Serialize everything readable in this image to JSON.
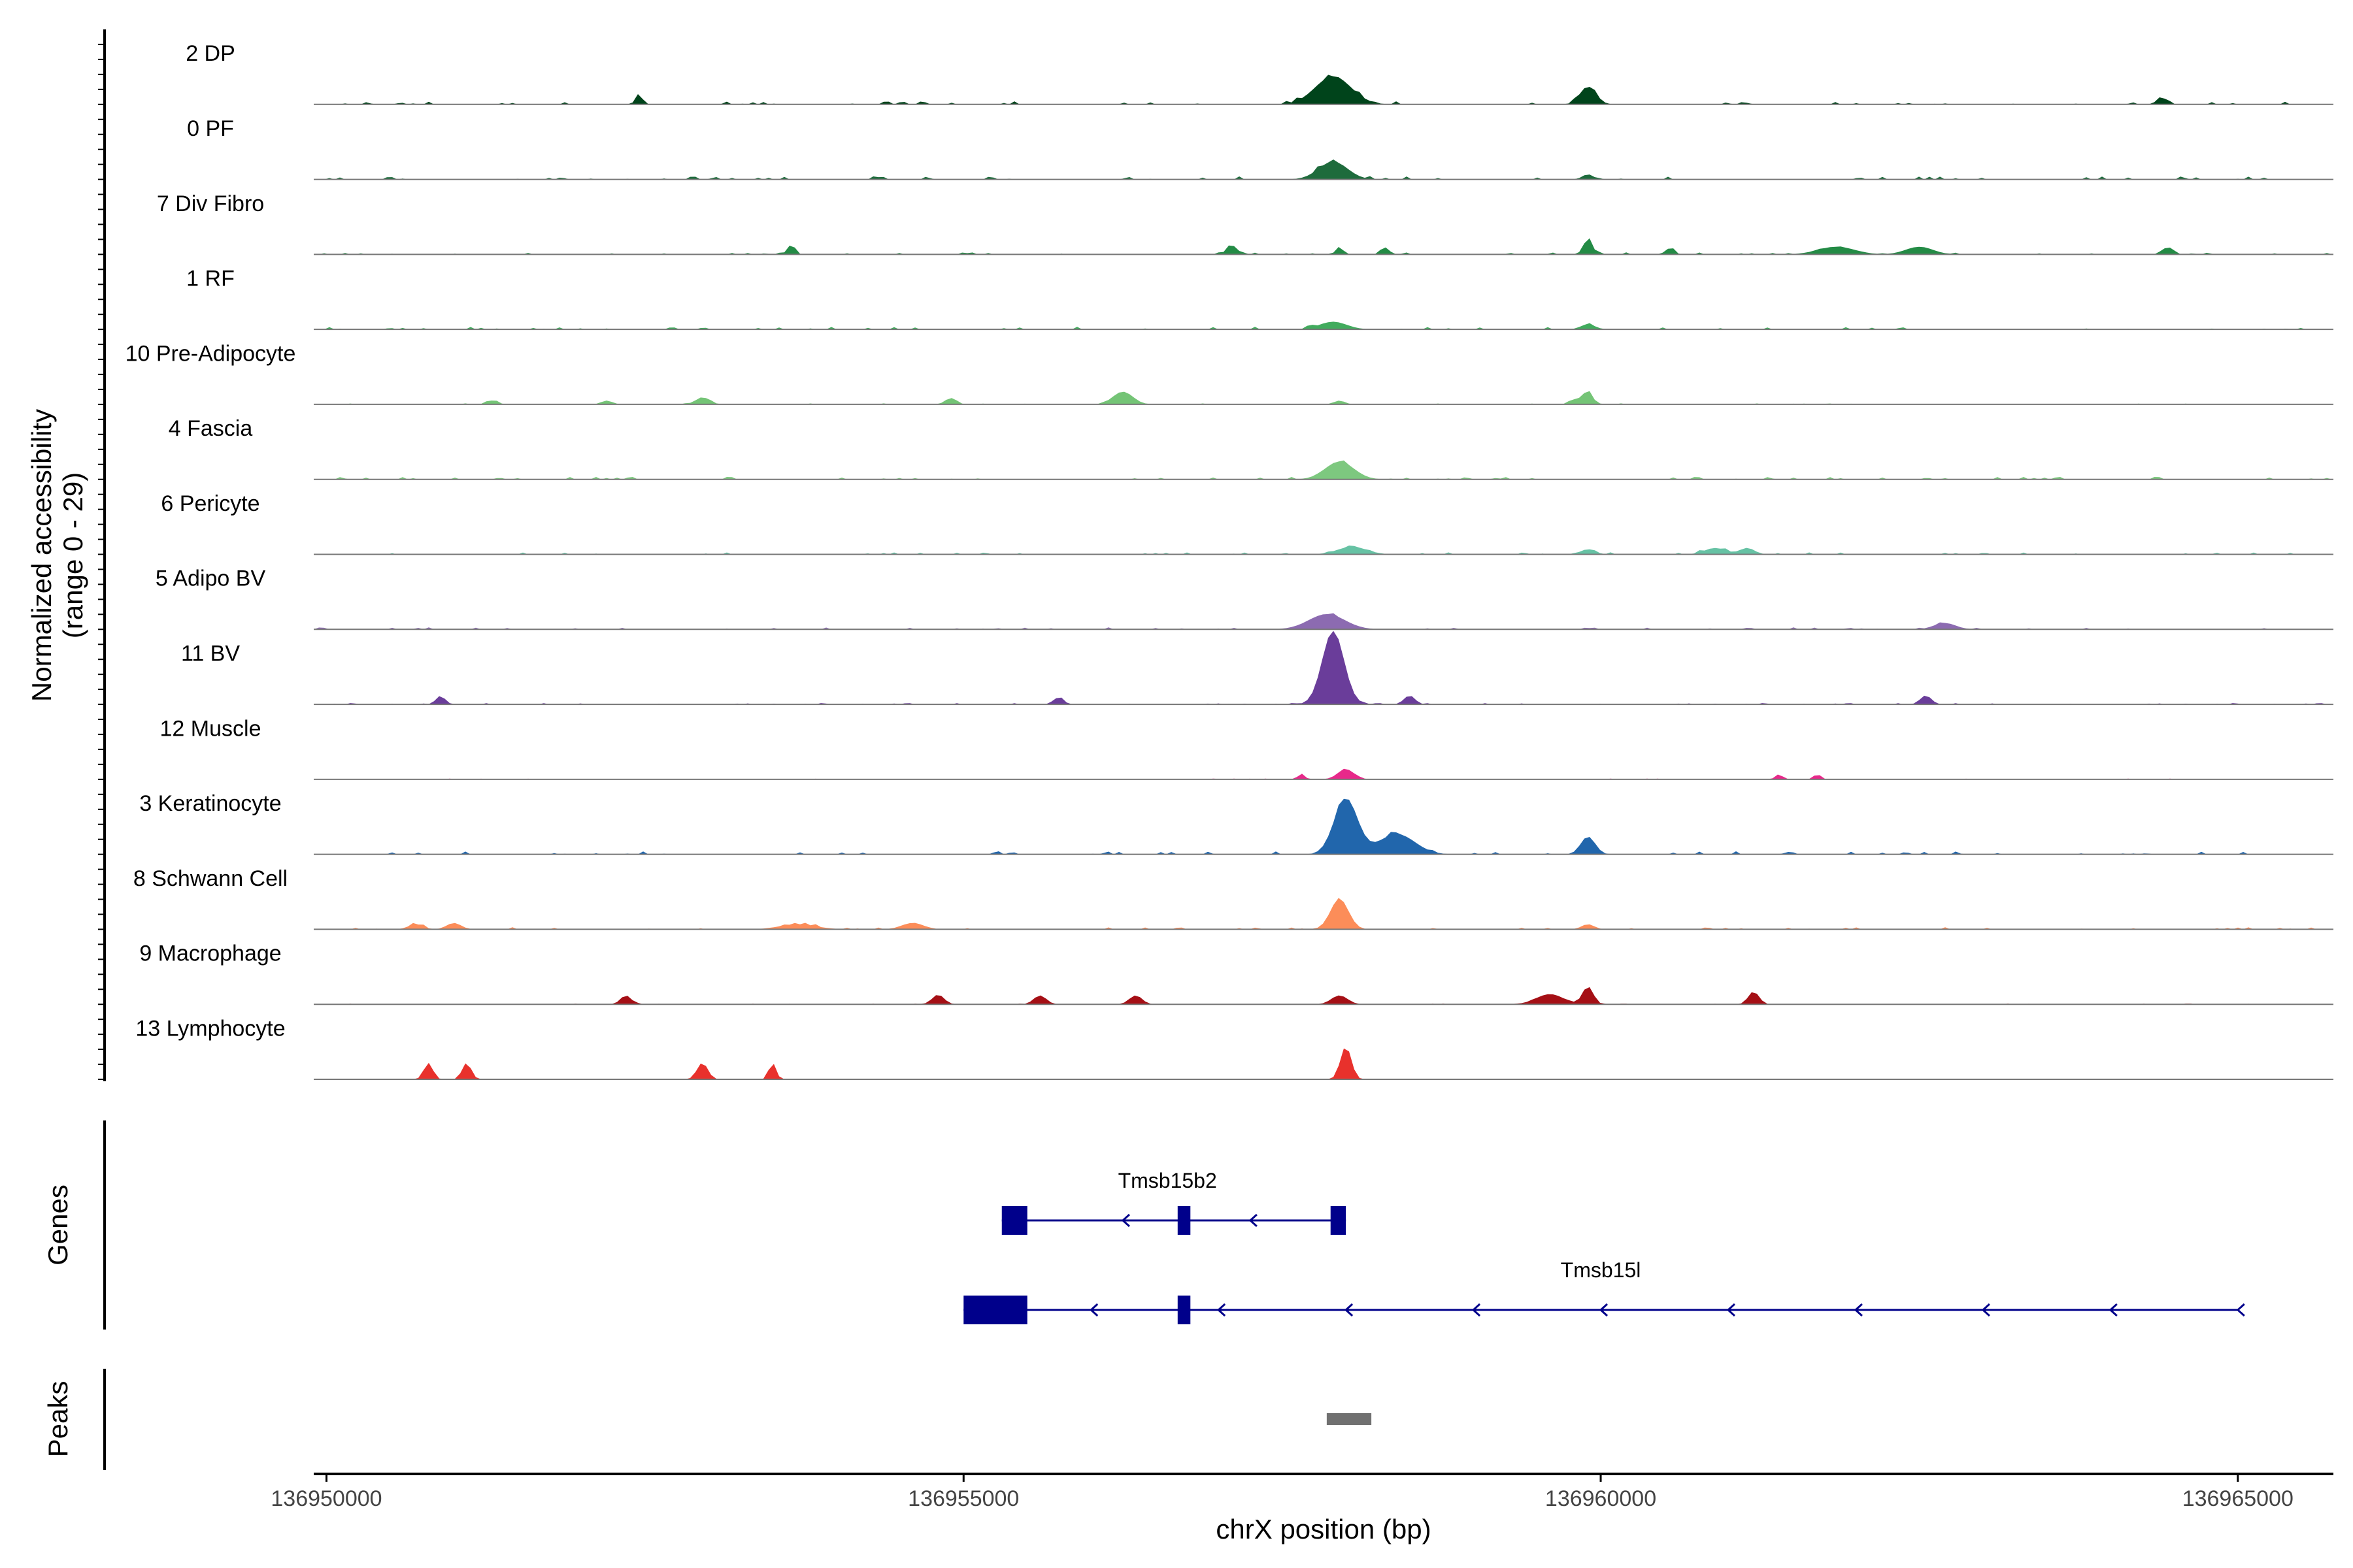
{
  "chart_data": {
    "type": "area",
    "chromosome": "chrX",
    "xlabel": "chrX position (bp)",
    "ylabel_line1": "Normalized accessibility",
    "ylabel_line2": "(range 0 - 29)",
    "y_range": [
      0,
      29
    ],
    "xlim": [
      136949900,
      136965750
    ],
    "x_ticks": [
      136950000,
      136955000,
      136960000,
      136965000
    ],
    "x_tick_labels": [
      "136950000",
      "136955000",
      "136960000",
      "136965000"
    ],
    "genes_label": "Genes",
    "peaks_label": "Peaks",
    "tracks": [
      {
        "name": "2 DP",
        "color": "#00441b",
        "peaks": [
          [
            136952450,
            0.03,
            40
          ],
          [
            136957900,
            0.11,
            200
          ],
          [
            136959900,
            0.07,
            90
          ],
          [
            136964400,
            0.03,
            50
          ]
        ],
        "noise": 0.012
      },
      {
        "name": "0 PF",
        "color": "#1e6b3c",
        "peaks": [
          [
            136957900,
            0.07,
            160
          ],
          [
            136959900,
            0.02,
            60
          ]
        ],
        "noise": 0.012
      },
      {
        "name": "7 Div Fibro",
        "color": "#238b45",
        "peaks": [
          [
            136953650,
            0.04,
            40
          ],
          [
            136957100,
            0.04,
            50
          ],
          [
            136957950,
            0.03,
            40
          ],
          [
            136958300,
            0.03,
            40
          ],
          [
            136959900,
            0.06,
            50
          ],
          [
            136960550,
            0.03,
            40
          ],
          [
            136961850,
            0.03,
            200
          ],
          [
            136962500,
            0.03,
            150
          ],
          [
            136964450,
            0.03,
            50
          ]
        ],
        "noise": 0.008
      },
      {
        "name": "1 RF",
        "color": "#41ab5d",
        "peaks": [
          [
            136957900,
            0.03,
            150
          ],
          [
            136959900,
            0.02,
            80
          ]
        ],
        "noise": 0.01
      },
      {
        "name": "10 Pre-Adipocyte",
        "color": "#74c476",
        "peaks": [
          [
            136951300,
            0.015,
            60
          ],
          [
            136952200,
            0.015,
            60
          ],
          [
            136952950,
            0.025,
            80
          ],
          [
            136954900,
            0.025,
            60
          ],
          [
            136956250,
            0.05,
            110
          ],
          [
            136957950,
            0.015,
            60
          ],
          [
            136959800,
            0.02,
            60
          ],
          [
            136959900,
            0.055,
            50
          ]
        ],
        "noise": 0.004
      },
      {
        "name": "4 Fascia",
        "color": "#7dc87f",
        "peaks": [
          [
            136957950,
            0.07,
            160
          ]
        ],
        "noise": 0.01
      },
      {
        "name": "6 Pericyte",
        "color": "#66c2a4",
        "peaks": [
          [
            136958050,
            0.03,
            160
          ],
          [
            136959900,
            0.02,
            80
          ],
          [
            136960900,
            0.025,
            120
          ],
          [
            136961150,
            0.025,
            80
          ]
        ],
        "noise": 0.008
      },
      {
        "name": "5 Adipo BV",
        "color": "#8c6bb1",
        "peaks": [
          [
            136957850,
            0.06,
            200
          ],
          [
            136962700,
            0.025,
            120
          ]
        ],
        "noise": 0.008
      },
      {
        "name": "11 BV",
        "color": "#6a3d9a",
        "peaks": [
          [
            136950900,
            0.03,
            50
          ],
          [
            136955750,
            0.03,
            50
          ],
          [
            136957900,
            0.29,
            120
          ],
          [
            136958500,
            0.035,
            60
          ],
          [
            136962550,
            0.035,
            60
          ]
        ],
        "noise": 0.005
      },
      {
        "name": "12 Muscle",
        "color": "#e7298a",
        "peaks": [
          [
            136957650,
            0.02,
            40
          ],
          [
            136958000,
            0.04,
            90
          ],
          [
            136961400,
            0.02,
            40
          ],
          [
            136961700,
            0.02,
            40
          ]
        ],
        "noise": 0.003
      },
      {
        "name": "3 Keratinocyte",
        "color": "#2166ac",
        "peaks": [
          [
            136958000,
            0.22,
            130
          ],
          [
            136958400,
            0.08,
            200
          ],
          [
            136959900,
            0.07,
            80
          ]
        ],
        "noise": 0.012
      },
      {
        "name": "8 Schwann Cell",
        "color": "#fc8d59",
        "peaks": [
          [
            136950700,
            0.02,
            80
          ],
          [
            136951000,
            0.025,
            80
          ],
          [
            136953700,
            0.02,
            200
          ],
          [
            136954600,
            0.025,
            120
          ],
          [
            136957950,
            0.12,
            100
          ],
          [
            136959900,
            0.02,
            70
          ]
        ],
        "noise": 0.008
      },
      {
        "name": "9 Macrophage",
        "color": "#a50f15",
        "peaks": [
          [
            136952350,
            0.035,
            60
          ],
          [
            136954800,
            0.035,
            70
          ],
          [
            136955600,
            0.035,
            70
          ],
          [
            136956350,
            0.035,
            70
          ],
          [
            136957950,
            0.035,
            90
          ],
          [
            136959600,
            0.04,
            150
          ],
          [
            136959900,
            0.07,
            60
          ],
          [
            136961200,
            0.05,
            60
          ]
        ],
        "noise": 0.003
      },
      {
        "name": "13 Lymphocyte",
        "color": "#e8312c",
        "peaks": [
          [
            136950800,
            0.065,
            50
          ],
          [
            136951100,
            0.065,
            50
          ],
          [
            136952950,
            0.065,
            60
          ],
          [
            136953500,
            0.065,
            40
          ],
          [
            136958000,
            0.13,
            60
          ]
        ],
        "noise": 0.0
      }
    ],
    "genes": [
      {
        "name": "Tmsb15b2",
        "strand": "-",
        "start": 136955300,
        "end": 136958000,
        "label_pos": 136956600,
        "exons": [
          [
            136955300,
            136955500
          ],
          [
            136956680,
            136956780
          ],
          [
            136957880,
            136958000
          ]
        ],
        "arrows": [
          136956250,
          136957250
        ],
        "row": 0
      },
      {
        "name": "Tmsb15l",
        "strand": "-",
        "start": 136955000,
        "end": 136965000,
        "label_pos": 136960000,
        "exons": [
          [
            136955000,
            136955500
          ],
          [
            136956680,
            136956780
          ]
        ],
        "arrows": [
          136956000,
          136957000,
          136958000,
          136959000,
          136960000,
          136961000,
          136962000,
          136963000,
          136964000,
          136965000
        ],
        "row": 1
      }
    ],
    "peaks": [
      [
        136957850,
        136958200
      ]
    ],
    "gene_color": "#00008b",
    "peak_color": "#707070"
  }
}
